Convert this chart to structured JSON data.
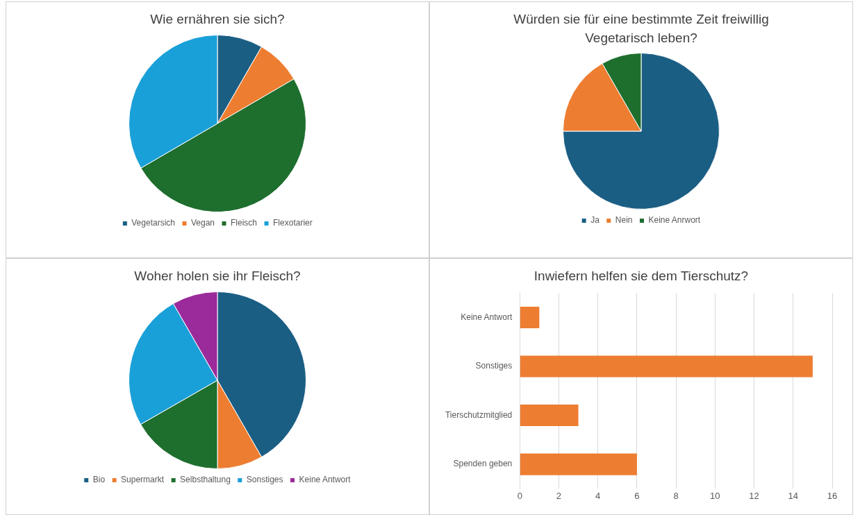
{
  "chart_data": [
    {
      "type": "pie",
      "title": "Wie ernähren sie sich?",
      "categories": [
        "Vegetarsich",
        "Vegan",
        "Fleisch",
        "Flexotarier"
      ],
      "values": [
        8.3,
        8.3,
        50,
        33.4
      ],
      "colors": [
        "#1b5e84",
        "#ed7d31",
        "#1e6e2e",
        "#1aa0d8"
      ],
      "legend": "bottom"
    },
    {
      "type": "pie",
      "title": "Würden sie für eine bestimmte Zeit freiwillig Vegetarisch leben?",
      "categories": [
        "Ja",
        "Nein",
        "Keine Anrwort"
      ],
      "values": [
        75,
        16.7,
        8.3
      ],
      "colors": [
        "#1b5e84",
        "#ed7d31",
        "#1e6e2e"
      ],
      "legend": "bottom"
    },
    {
      "type": "pie",
      "title": "Woher holen sie ihr Fleisch?",
      "categories": [
        "Bio",
        "Supermarkt",
        "Selbsthaltung",
        "Sonstiges",
        "Keine Antwort"
      ],
      "values": [
        41.7,
        8.3,
        16.7,
        25,
        8.3
      ],
      "colors": [
        "#1b5e84",
        "#ed7d31",
        "#1e6e2e",
        "#1aa0d8",
        "#9b2a9b"
      ],
      "legend": "bottom"
    },
    {
      "type": "bar",
      "orientation": "horizontal",
      "title": "Inwiefern helfen sie dem Tierschutz?",
      "categories": [
        "Keine Antwort",
        "Sonstiges",
        "Tierschutzmitglied",
        "Spenden geben"
      ],
      "values": [
        1,
        15,
        3,
        6
      ],
      "color": "#ed7d31",
      "xlim": [
        0,
        16
      ],
      "xticks": [
        0,
        2,
        4,
        6,
        8,
        10,
        12,
        14,
        16
      ],
      "grid": "x"
    }
  ]
}
